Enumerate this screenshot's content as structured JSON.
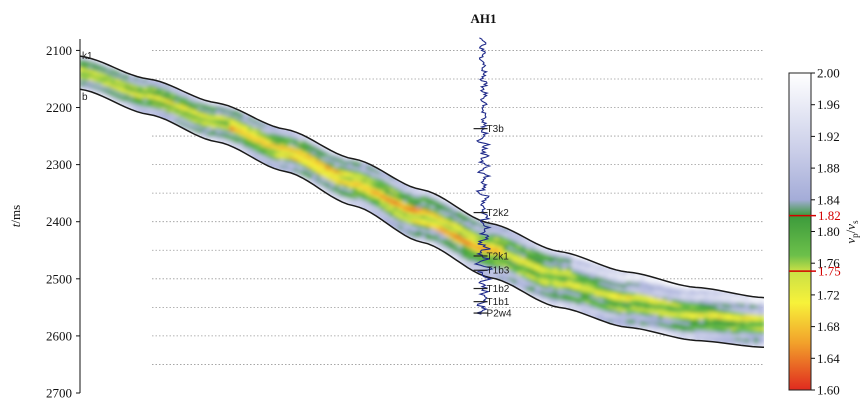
{
  "chart_data": {
    "type": "heatmap",
    "well": {
      "name": "AH1",
      "x_position_fraction": 0.59
    },
    "yaxis": {
      "label_italic": "t",
      "label_unit": "/ms",
      "ylim": [
        2080,
        2700
      ],
      "inverted": true,
      "ticks": [
        2100,
        2200,
        2300,
        2400,
        2500,
        2600,
        2700
      ]
    },
    "colorbar": {
      "label_base1": "v",
      "label_sub1": "p",
      "label_slash": "/",
      "label_base2": "v",
      "label_sub2": "s",
      "range": [
        1.6,
        2.0
      ],
      "ticks": [
        "2.00",
        "1.96",
        "1.92",
        "1.88",
        "1.84",
        "1.80",
        "1.76",
        "1.72",
        "1.68",
        "1.64",
        "1.60"
      ],
      "highlight_ticks": [
        {
          "value": 1.82,
          "text": "1.82",
          "color": "#d40000"
        },
        {
          "value": 1.75,
          "text": "1.75",
          "color": "#d40000"
        }
      ],
      "stops": [
        {
          "v": 1.6,
          "color": "#e02a1f"
        },
        {
          "v": 1.66,
          "color": "#f2a22b"
        },
        {
          "v": 1.71,
          "color": "#f7f23a"
        },
        {
          "v": 1.75,
          "color": "#c9e046"
        },
        {
          "v": 1.77,
          "color": "#6cc04a"
        },
        {
          "v": 1.82,
          "color": "#3c9a3c"
        },
        {
          "v": 1.84,
          "color": "#a4acd8"
        },
        {
          "v": 1.9,
          "color": "#c9cde8"
        },
        {
          "v": 2.0,
          "color": "#ffffff"
        }
      ]
    },
    "boundaries": {
      "top": {
        "name": "k1",
        "x": [
          0,
          0.1,
          0.2,
          0.3,
          0.4,
          0.5,
          0.6,
          0.7,
          0.8,
          0.9,
          1.0
        ],
        "t": [
          2110,
          2150,
          2192,
          2238,
          2290,
          2344,
          2403,
          2452,
          2488,
          2515,
          2533
        ]
      },
      "bottom": {
        "name": "b",
        "x": [
          0,
          0.1,
          0.2,
          0.3,
          0.4,
          0.5,
          0.6,
          0.7,
          0.8,
          0.9,
          1.0
        ],
        "t": [
          2168,
          2212,
          2260,
          2312,
          2372,
          2436,
          2498,
          2550,
          2585,
          2608,
          2620
        ]
      }
    },
    "horizons": [
      {
        "name": "T3b",
        "t": 2237
      },
      {
        "name": "T2k2",
        "t": 2384
      },
      {
        "name": "T2k1",
        "t": 2460
      },
      {
        "name": "T1b3",
        "t": 2485
      },
      {
        "name": "T1b2",
        "t": 2517
      },
      {
        "name": "T1b1",
        "t": 2540
      },
      {
        "name": "P2w4",
        "t": 2560
      }
    ],
    "reference_lines_t": [
      2150,
      2250,
      2350,
      2450,
      2550,
      2650
    ]
  }
}
